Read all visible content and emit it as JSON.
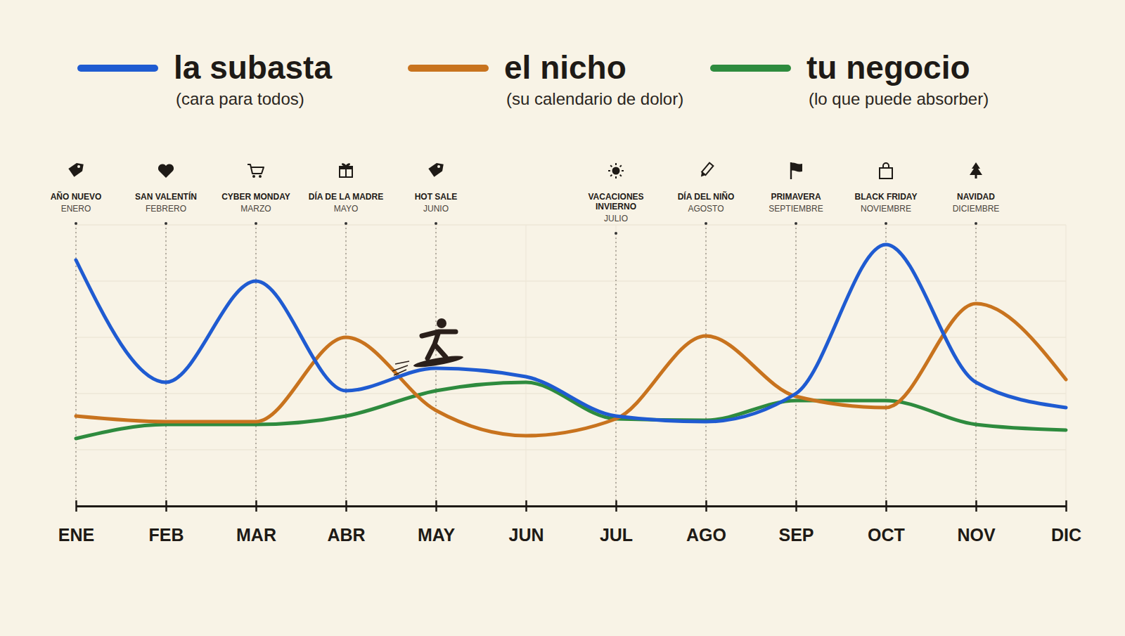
{
  "chart_data": {
    "type": "line",
    "legend": "top",
    "grid": true,
    "tick_labels": "x",
    "categories": [
      "ENE",
      "FEB",
      "MAR",
      "ABR",
      "MAY",
      "JUN",
      "JUL",
      "AGO",
      "SEP",
      "OCT",
      "NOV",
      "DIC"
    ],
    "ylim": [
      0,
      100
    ],
    "yticks": [
      0,
      20,
      40,
      60,
      80,
      100
    ],
    "series": [
      {
        "name": "la subasta",
        "description": "(cara para todos)",
        "color": "#1f5bd1",
        "values": [
          87.5,
          44,
          80,
          41,
          49,
          46,
          32,
          30,
          40,
          93,
          44,
          35
        ]
      },
      {
        "name": "el nicho",
        "description": "(su calendario de dolor)",
        "color": "#c8731e",
        "values": [
          32,
          30,
          30,
          60,
          34,
          25,
          31,
          60.5,
          39,
          35,
          72,
          45
        ]
      },
      {
        "name": "tu negocio",
        "description": "(lo que puede absorber)",
        "color": "#2e8b3e",
        "values": [
          24,
          29,
          29,
          32,
          41,
          44,
          31,
          30.5,
          37.5,
          37.5,
          29,
          27
        ]
      }
    ],
    "annotations": [
      {
        "label": "AÑO NUEVO",
        "sublabel": "ENERO",
        "at": "ENE"
      },
      {
        "label": "SAN VALENTÍN",
        "sublabel": "FEBRERO",
        "at": "FEB"
      },
      {
        "label": "CYBER MONDAY",
        "sublabel": "MARZO",
        "at": "MAR"
      },
      {
        "label": "DÍA DE LA MADRE",
        "sublabel": "MAYO",
        "at": "ABR"
      },
      {
        "label": "HOT SALE",
        "sublabel": "JUNIO",
        "at": "MAY"
      },
      {
        "label": "VACACIONES INVIERNO",
        "sublabel": "JULIO",
        "at": "JUL"
      },
      {
        "label": "DÍA DEL NIÑO",
        "sublabel": "AGOSTO",
        "at": "AGO"
      },
      {
        "label": "PRIMAVERA",
        "sublabel": "SEPTIEMBRE",
        "at": "SEP"
      },
      {
        "label": "BLACK FRIDAY",
        "sublabel": "NOVIEMBRE",
        "at": "OCT"
      },
      {
        "label": "NAVIDAD",
        "sublabel": "DICIEMBRE",
        "at": "NOV"
      }
    ]
  }
}
